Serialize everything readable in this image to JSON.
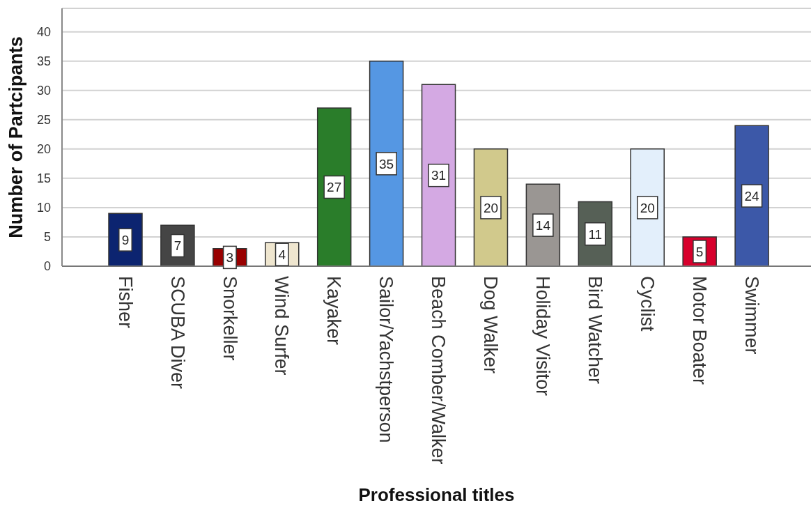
{
  "chart_data": {
    "type": "bar",
    "xlabel": "Professional titles",
    "ylabel": "Number of Partcipants",
    "categories": [
      "Fisher",
      "SCUBA Diver",
      "Snorkeller",
      "Wind Surfer",
      "Kayaker",
      "Sailor/Yachstperson",
      "Beach Comber/Walker",
      "Dog Walker",
      "Holiday Visitor",
      "Bird Watcher",
      "Cyclist",
      "Motor Boater",
      "Swimmer"
    ],
    "values": [
      9,
      7,
      3,
      4,
      27,
      35,
      31,
      20,
      14,
      11,
      20,
      5,
      24
    ],
    "colors": [
      "#0c2470",
      "#454545",
      "#990000",
      "#efe6cf",
      "#2a7d2a",
      "#5597e3",
      "#d4a9e3",
      "#d1c98c",
      "#9a9693",
      "#566056",
      "#e3effb",
      "#d7002c",
      "#3c58a8"
    ],
    "ylim": [
      0,
      44
    ],
    "yticks": [
      0,
      5,
      10,
      15,
      20,
      25,
      30,
      35,
      40
    ],
    "grid": "y",
    "data_labels": true
  }
}
